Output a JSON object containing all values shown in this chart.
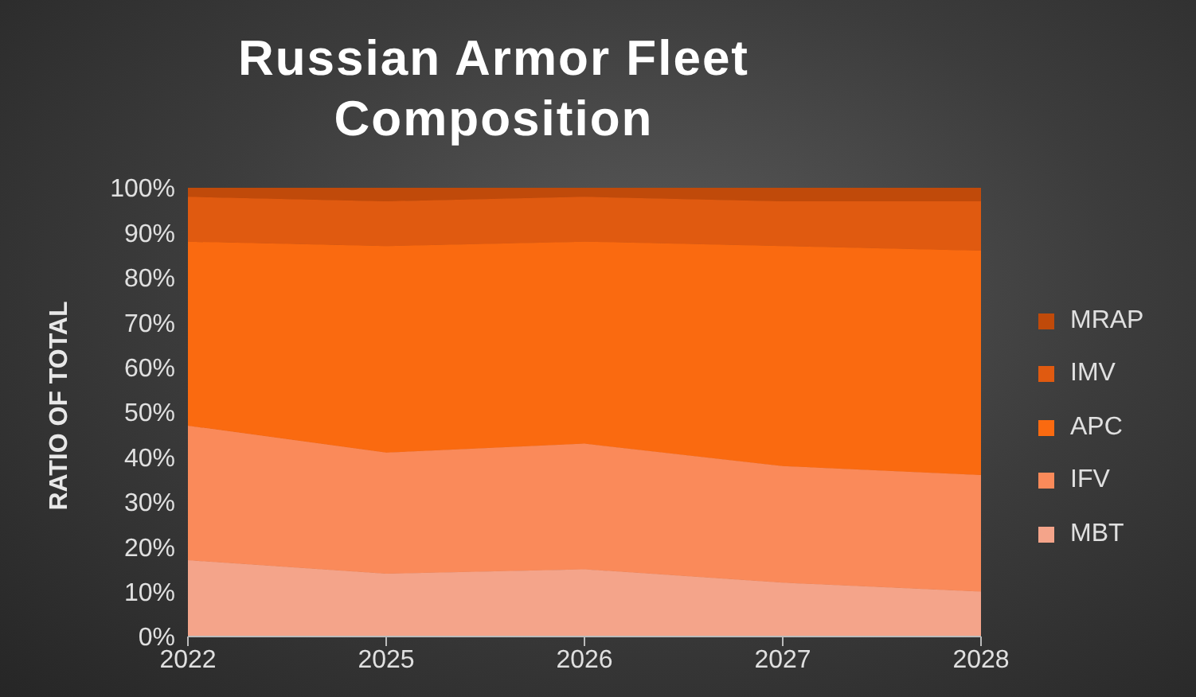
{
  "chart_data": {
    "type": "area",
    "stacked": true,
    "title": "Russian Armor Fleet Composition",
    "ylabel": "RATIO OF TOTAL",
    "categories": [
      "2022",
      "2025",
      "2026",
      "2027",
      "2028"
    ],
    "series": [
      {
        "name": "MBT",
        "color": "#f4a48a",
        "values": [
          17,
          14,
          15,
          12,
          10
        ]
      },
      {
        "name": "IFV",
        "color": "#fa8a5a",
        "values": [
          30,
          27,
          28,
          26,
          26
        ]
      },
      {
        "name": "APC",
        "color": "#fa6a10",
        "values": [
          41,
          46,
          45,
          49,
          50
        ]
      },
      {
        "name": "IMV",
        "color": "#e05a10",
        "values": [
          10,
          10,
          10,
          10,
          11
        ]
      },
      {
        "name": "MRAP",
        "color": "#c04a0a",
        "values": [
          2,
          3,
          2,
          3,
          3
        ]
      }
    ],
    "ylim": [
      0,
      100
    ],
    "yticks": [
      {
        "value": 0,
        "label": "0%"
      },
      {
        "value": 10,
        "label": "10%"
      },
      {
        "value": 20,
        "label": "20%"
      },
      {
        "value": 30,
        "label": "30%"
      },
      {
        "value": 40,
        "label": "40%"
      },
      {
        "value": 50,
        "label": "50%"
      },
      {
        "value": 60,
        "label": "60%"
      },
      {
        "value": 70,
        "label": "70%"
      },
      {
        "value": 80,
        "label": "80%"
      },
      {
        "value": 90,
        "label": "90%"
      },
      {
        "value": 100,
        "label": "100%"
      }
    ],
    "grid": false,
    "legend": "right"
  }
}
